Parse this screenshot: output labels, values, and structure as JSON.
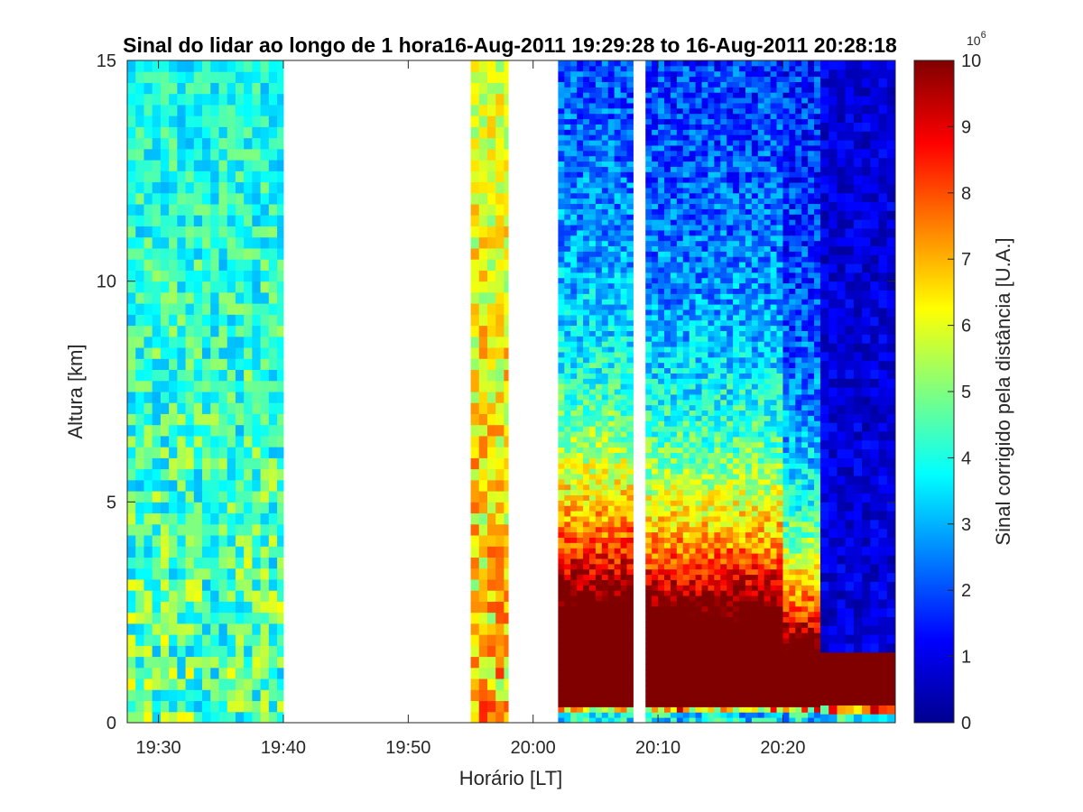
{
  "chart_data": {
    "type": "heatmap",
    "title": "Sinal do lidar ao longo de 1 hora16-Aug-2011 19:29:28 to 16-Aug-2011 20:28:18",
    "xlabel": "Horário [LT]",
    "ylabel": "Altura [km]",
    "colorbar_label": "Sinal corrigido pela distância [U.A.]",
    "colorbar_multiplier": "10^6",
    "colorbar_multiplier_base": "10",
    "colorbar_multiplier_exp": "6",
    "colormap": "jet",
    "xlim": [
      "19:27:30",
      "20:29:00"
    ],
    "ylim": [
      0,
      15
    ],
    "clim": [
      0,
      10
    ],
    "x_ticks": [
      {
        "time": "19:30",
        "label": "19:30"
      },
      {
        "time": "19:40",
        "label": "19:40"
      },
      {
        "time": "19:50",
        "label": "19:50"
      },
      {
        "time": "20:00",
        "label": "20:00"
      },
      {
        "time": "20:10",
        "label": "20:10"
      },
      {
        "time": "20:20",
        "label": "20:20"
      }
    ],
    "y_ticks": [
      {
        "value": 0,
        "label": "0"
      },
      {
        "value": 5,
        "label": "5"
      },
      {
        "value": 10,
        "label": "10"
      },
      {
        "value": 15,
        "label": "15"
      }
    ],
    "colorbar_ticks": [
      {
        "value": 0,
        "label": "0"
      },
      {
        "value": 1,
        "label": "1"
      },
      {
        "value": 2,
        "label": "2"
      },
      {
        "value": 3,
        "label": "3"
      },
      {
        "value": 4,
        "label": "4"
      },
      {
        "value": 5,
        "label": "5"
      },
      {
        "value": 6,
        "label": "6"
      },
      {
        "value": 7,
        "label": "7"
      },
      {
        "value": 8,
        "label": "8"
      },
      {
        "value": 9,
        "label": "9"
      },
      {
        "value": 10,
        "label": "10"
      }
    ],
    "data_segments": [
      {
        "start": "19:27:30",
        "end": "19:40:00",
        "regime": "noise",
        "level": 0.3
      },
      {
        "start": "19:55:00",
        "end": "19:58:00",
        "regime": "noise",
        "level": 0.5
      },
      {
        "start": "20:02:00",
        "end": "20:08:00",
        "regime": "aerosol",
        "pbl_top_km": 2.5,
        "decay_scale_km": 4.0
      },
      {
        "start": "20:09:00",
        "end": "20:20:00",
        "regime": "aerosol",
        "pbl_top_km": 2.3,
        "decay_scale_km": 3.5
      },
      {
        "start": "20:20:00",
        "end": "20:23:00",
        "regime": "aerosol",
        "pbl_top_km": 1.6,
        "decay_scale_km": 2.5
      },
      {
        "start": "20:23:00",
        "end": "20:29:00",
        "regime": "cloud",
        "pbl_top_km": 1.6
      }
    ],
    "data_gaps": [
      {
        "start": "19:40:00",
        "end": "19:55:00"
      },
      {
        "start": "19:58:00",
        "end": "20:02:00"
      },
      {
        "start": "20:08:00",
        "end": "20:09:00"
      }
    ]
  }
}
